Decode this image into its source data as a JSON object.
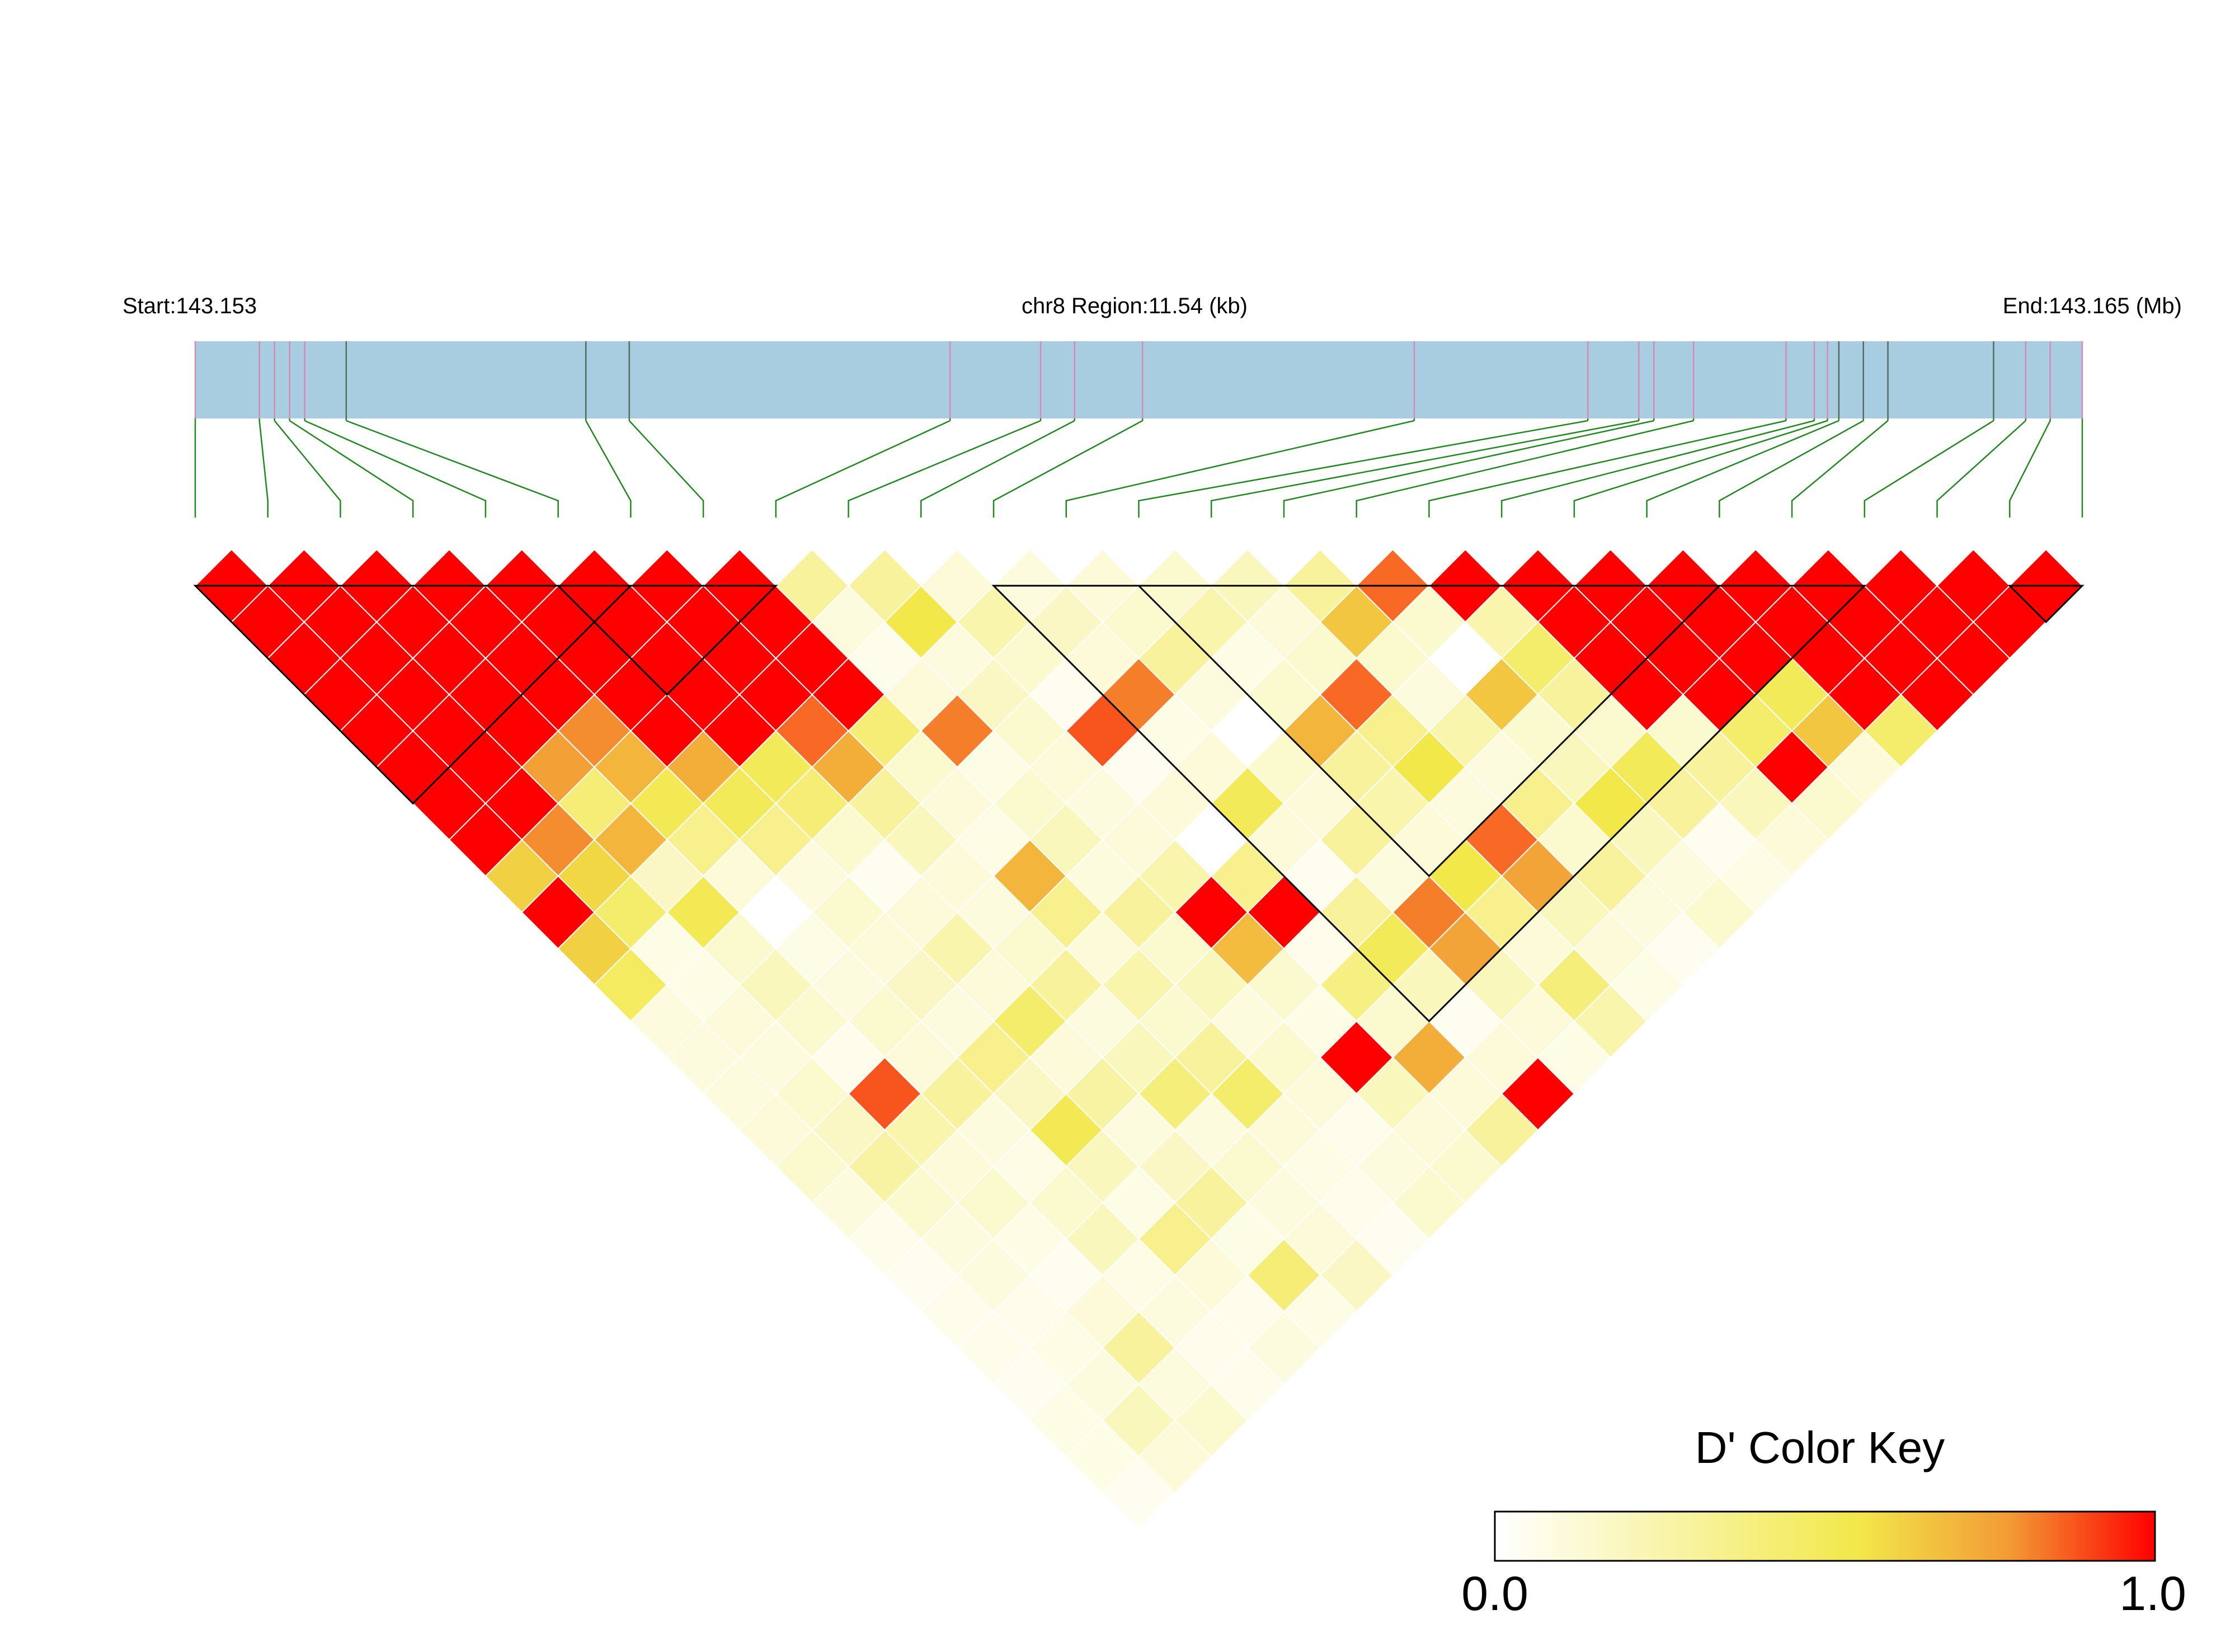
{
  "chart_data": {
    "type": "heatmap",
    "header": {
      "start_label": "Start:143.153",
      "region_label": "chr8 Region:11.54 (kb)",
      "end_label": "End:143.165 (Mb)"
    },
    "color_key": {
      "title": "D' Color Key",
      "min_label": "0.0",
      "max_label": "1.0",
      "min_value": 0.0,
      "max_value": 1.0,
      "colors": [
        "#ffffff",
        "#f2e84a",
        "#f39a35",
        "#ff0000"
      ]
    },
    "colors": {
      "track_fill": "#a8cde0",
      "snp_tick_light": "#d987b4",
      "snp_tick_dark": "#556b5d",
      "connector": "#1e8a1e",
      "cell_border": "#ffffff",
      "block_outline": "#000000"
    },
    "region": {
      "start_mb": 143.153,
      "end_mb": 143.165
    },
    "snp_positions": [
      0.0,
      0.034,
      0.042,
      0.05,
      0.058,
      0.08,
      0.207,
      0.23,
      0.4,
      0.448,
      0.466,
      0.502,
      0.646,
      0.738,
      0.765,
      0.773,
      0.794,
      0.843,
      0.858,
      0.865,
      0.871,
      0.884,
      0.897,
      0.953,
      0.97,
      0.983,
      1.0
    ],
    "dark_snp_ticks": [
      5,
      6,
      7,
      20,
      21,
      22,
      23
    ],
    "ld_matrix": [
      [
        1.0,
        1.0,
        1.0,
        1.0,
        1.0,
        1.0,
        1.0,
        1.0,
        0.62,
        1.0,
        0.62,
        0.48,
        0.1,
        0.1,
        0.1,
        0.12,
        0.15,
        0.1,
        0.06,
        0.05,
        0.06,
        0.06,
        0.05,
        0.08,
        0.08,
        0.05
      ],
      [
        1.0,
        1.0,
        1.0,
        1.0,
        1.0,
        1.0,
        1.0,
        0.8,
        0.6,
        0.45,
        0.08,
        0.08,
        0.12,
        0.1,
        0.15,
        0.18,
        0.28,
        0.15,
        0.1,
        0.1,
        0.06,
        0.08,
        0.1,
        0.2,
        0.12
      ],
      [
        1.0,
        1.0,
        1.0,
        1.0,
        1.0,
        0.76,
        0.42,
        0.7,
        0.18,
        0.12,
        0.15,
        0.2,
        0.15,
        0.06,
        0.12,
        0.25,
        0.12,
        0.15,
        0.08,
        0.05,
        0.12,
        0.3,
        0.1,
        0.15
      ],
      [
        1.0,
        1.0,
        1.0,
        1.0,
        0.8,
        0.7,
        0.52,
        0.35,
        0.12,
        0.0,
        0.08,
        0.1,
        0.15,
        0.12,
        0.3,
        0.1,
        0.08,
        0.15,
        0.2,
        0.08,
        0.1,
        0.06,
        0.06
      ],
      [
        1.0,
        1.0,
        1.0,
        1.0,
        1.0,
        0.72,
        0.5,
        0.35,
        0.1,
        0.15,
        0.12,
        0.18,
        0.1,
        0.35,
        0.18,
        0.12,
        0.2,
        0.08,
        0.35,
        0.12,
        0.06,
        0.1
      ],
      [
        1.0,
        1.0,
        1.0,
        1.0,
        1.0,
        0.5,
        0.42,
        0.15,
        0.05,
        0.12,
        0.25,
        0.12,
        0.45,
        0.12,
        0.28,
        0.1,
        0.18,
        0.3,
        0.08,
        0.42,
        0.08
      ],
      [
        1.0,
        1.0,
        1.0,
        1.0,
        0.85,
        0.72,
        0.3,
        0.2,
        0.12,
        0.1,
        0.15,
        0.3,
        0.1,
        0.2,
        0.12,
        0.1,
        0.15,
        0.1,
        0.12,
        0.18
      ],
      [
        1.0,
        1.0,
        1.0,
        1.0,
        0.42,
        0.15,
        0.12,
        0.08,
        0.0,
        0.35,
        0.12,
        0.25,
        0.15,
        0.3,
        0.45,
        0.12,
        0.08,
        0.06,
        0.05
      ],
      [
        0.3,
        0.1,
        0.06,
        0.12,
        0.2,
        0.08,
        0.15,
        0.2,
        0.1,
        0.3,
        0.15,
        0.2,
        0.1,
        0.15,
        0.12,
        0.06,
        0.1,
        0.15
      ],
      [
        0.3,
        0.55,
        0.1,
        0.18,
        0.15,
        0.12,
        0.1,
        0.12,
        0.25,
        1.0,
        0.68,
        0.15,
        0.08,
        1.0,
        0.2,
        0.12,
        0.15
      ],
      [
        0.12,
        0.25,
        0.15,
        0.05,
        0.1,
        0.05,
        0.12,
        0.0,
        0.35,
        1.0,
        0.06,
        0.38,
        0.15,
        0.72,
        0.12,
        0.3
      ],
      [
        0.1,
        0.18,
        0.12,
        0.0,
        0.08,
        0.12,
        0.5,
        0.12,
        0.05,
        0.3,
        0.5,
        0.2,
        0.25,
        0.12,
        1.0
      ],
      [
        0.12,
        0.15,
        0.3,
        0.1,
        0.8,
        0.22,
        0.12,
        0.3,
        0.1,
        0.15,
        0.75,
        0.2,
        0.12,
        0.08
      ],
      [
        0.15,
        0.25,
        0.08,
        0.15,
        0.7,
        0.3,
        0.25,
        0.12,
        0.55,
        0.35,
        0.12,
        0.4,
        0.25
      ],
      [
        0.2,
        0.12,
        0.15,
        0.85,
        0.35,
        0.55,
        0.1,
        0.85,
        0.75,
        0.2,
        0.12,
        0.08
      ],
      [
        0.3,
        0.65,
        0.15,
        0.1,
        0.25,
        0.1,
        0.35,
        0.15,
        0.3,
        0.1,
        0.05
      ],
      [
        0.85,
        0.15,
        0.15,
        0.65,
        0.15,
        0.2,
        0.55,
        0.2,
        0.1,
        0.15
      ],
      [
        1.0,
        0.25,
        0.45,
        0.3,
        0.15,
        0.12,
        0.3,
        0.05,
        0.08
      ],
      [
        1.0,
        1.0,
        1.0,
        1.0,
        0.15,
        0.3,
        0.2,
        0.12
      ],
      [
        1.0,
        1.0,
        1.0,
        1.0,
        0.8,
        1.0,
        0.15
      ],
      [
        1.0,
        1.0,
        1.0,
        1.0,
        0.65,
        0.12
      ],
      [
        1.0,
        1.0,
        1.0,
        1.0,
        0.45
      ],
      [
        1.0,
        1.0,
        1.0,
        1.0
      ],
      [
        1.0,
        1.0,
        1.0
      ],
      [
        1.0,
        1.0
      ],
      [
        1.0
      ]
    ],
    "overrides": [
      [
        2,
        12,
        0.52
      ],
      [
        11,
        24,
        0.05
      ],
      [
        2,
        17,
        0.88
      ],
      [
        4,
        20,
        0.52
      ],
      [
        12,
        17,
        0.0
      ],
      [
        12,
        18,
        0.15
      ],
      [
        8,
        13,
        0.82
      ],
      [
        17,
        23,
        0.5
      ],
      [
        20,
        24,
        0.5
      ],
      [
        19,
        24,
        0.45
      ],
      [
        6,
        21,
        0.4
      ],
      [
        11,
        15,
        0.82
      ],
      [
        12,
        22,
        0.82
      ],
      [
        16,
        19,
        0.0
      ],
      [
        10,
        15,
        0.88
      ],
      [
        7,
        16,
        0.7
      ]
    ],
    "blocks": [
      [
        0,
        6
      ],
      [
        5,
        8
      ],
      [
        11,
        23
      ],
      [
        13,
        21
      ],
      [
        25,
        26
      ]
    ]
  }
}
